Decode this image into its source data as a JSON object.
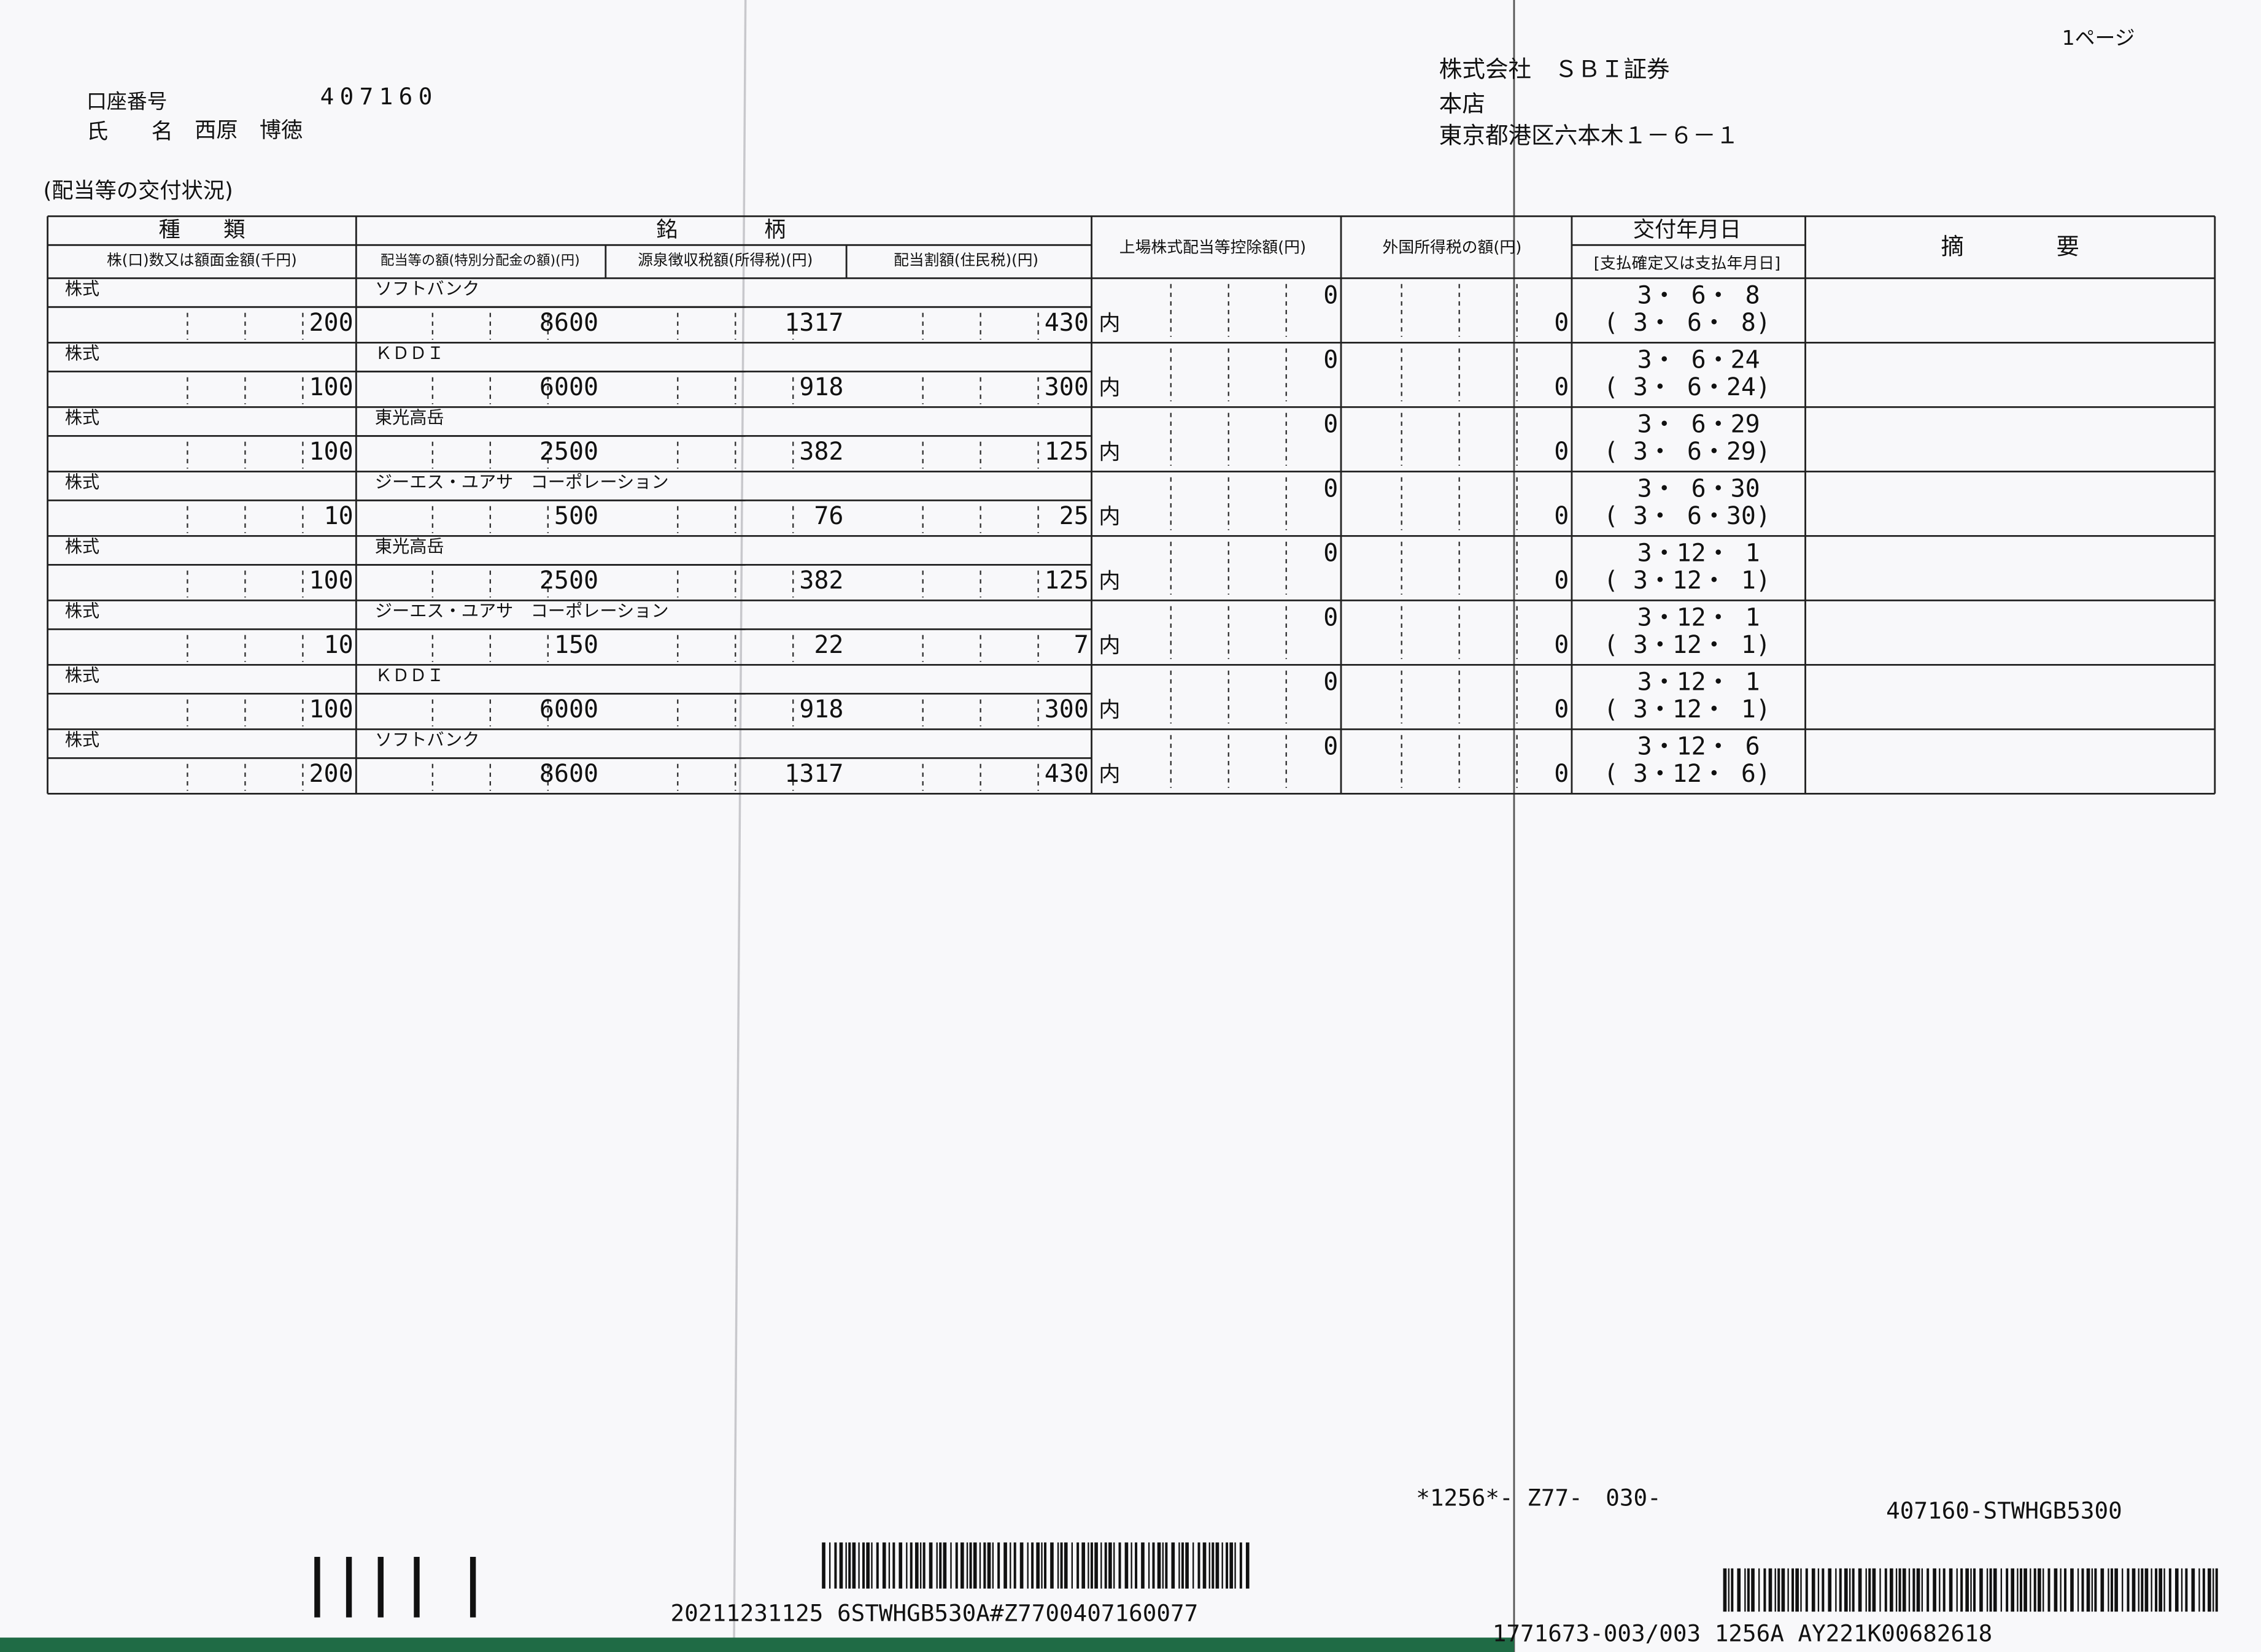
{
  "page": "1ページ",
  "account": {
    "label": "口座番号",
    "number": "407160"
  },
  "holder": {
    "label": "氏　　名",
    "name": "西原　博徳"
  },
  "company": {
    "name": "株式会社　ＳＢＩ証券",
    "branch": "本店",
    "address": "東京都港区六本木１－６－１"
  },
  "section_title": "(配当等の交付状況)",
  "headers": {
    "type": "種　　類",
    "shares": "株(口)数又は額面金額(千円)",
    "issue": "銘　　　　柄",
    "amount": "配当等の額(特別分配金の額)(円)",
    "withholding": "源泉徴収税額(所得税)(円)",
    "local_tax": "配当割額(住民税)(円)",
    "deduction": "上場株式配当等控除額(円)",
    "foreign_tax": "外国所得税の額(円)",
    "date": "交付年月日",
    "pay_date": "[支払確定又は支払年月日]",
    "remarks": "摘　　　　要"
  },
  "rows": [
    {
      "type": "株式",
      "shares": 200,
      "issue": "ソフトバンク",
      "amount": 8600,
      "withholding": 1317,
      "local_tax": 430,
      "mark": "内",
      "deduction": 0,
      "foreign_tax": 0,
      "date": "3・ 6・ 8",
      "pay_date": "( 3・ 6・ 8)"
    },
    {
      "type": "株式",
      "shares": 100,
      "issue": "ＫＤＤＩ",
      "amount": 6000,
      "withholding": 918,
      "local_tax": 300,
      "mark": "内",
      "deduction": 0,
      "foreign_tax": 0,
      "date": "3・ 6・24",
      "pay_date": "( 3・ 6・24)"
    },
    {
      "type": "株式",
      "shares": 100,
      "issue": "東光高岳",
      "amount": 2500,
      "withholding": 382,
      "local_tax": 125,
      "mark": "内",
      "deduction": 0,
      "foreign_tax": 0,
      "date": "3・ 6・29",
      "pay_date": "( 3・ 6・29)"
    },
    {
      "type": "株式",
      "shares": 10,
      "issue": "ジーエス・ユアサ　コーポレーション",
      "amount": 500,
      "withholding": 76,
      "local_tax": 25,
      "mark": "内",
      "deduction": 0,
      "foreign_tax": 0,
      "date": "3・ 6・30",
      "pay_date": "( 3・ 6・30)"
    },
    {
      "type": "株式",
      "shares": 100,
      "issue": "東光高岳",
      "amount": 2500,
      "withholding": 382,
      "local_tax": 125,
      "mark": "内",
      "deduction": 0,
      "foreign_tax": 0,
      "date": "3・12・ 1",
      "pay_date": "( 3・12・ 1)"
    },
    {
      "type": "株式",
      "shares": 10,
      "issue": "ジーエス・ユアサ　コーポレーション",
      "amount": 150,
      "withholding": 22,
      "local_tax": 7,
      "mark": "内",
      "deduction": 0,
      "foreign_tax": 0,
      "date": "3・12・ 1",
      "pay_date": "( 3・12・ 1)"
    },
    {
      "type": "株式",
      "shares": 100,
      "issue": "ＫＤＤＩ",
      "amount": 6000,
      "withholding": 918,
      "local_tax": 300,
      "mark": "内",
      "deduction": 0,
      "foreign_tax": 0,
      "date": "3・12・ 1",
      "pay_date": "( 3・12・ 1)"
    },
    {
      "type": "株式",
      "shares": 200,
      "issue": "ソフトバンク",
      "amount": 8600,
      "withholding": 1317,
      "local_tax": 430,
      "mark": "内",
      "deduction": 0,
      "foreign_tax": 0,
      "date": "3・12・ 6",
      "pay_date": "( 3・12・ 6)"
    }
  ],
  "footer": {
    "code": "*1256*- Z77-　030-",
    "id": "407160-STWHGB5300",
    "barcode_text": "20211231125 6STWHGB530A#Z7700407160077",
    "serial": "1771673-003/003 1256A AY221K00682618"
  }
}
